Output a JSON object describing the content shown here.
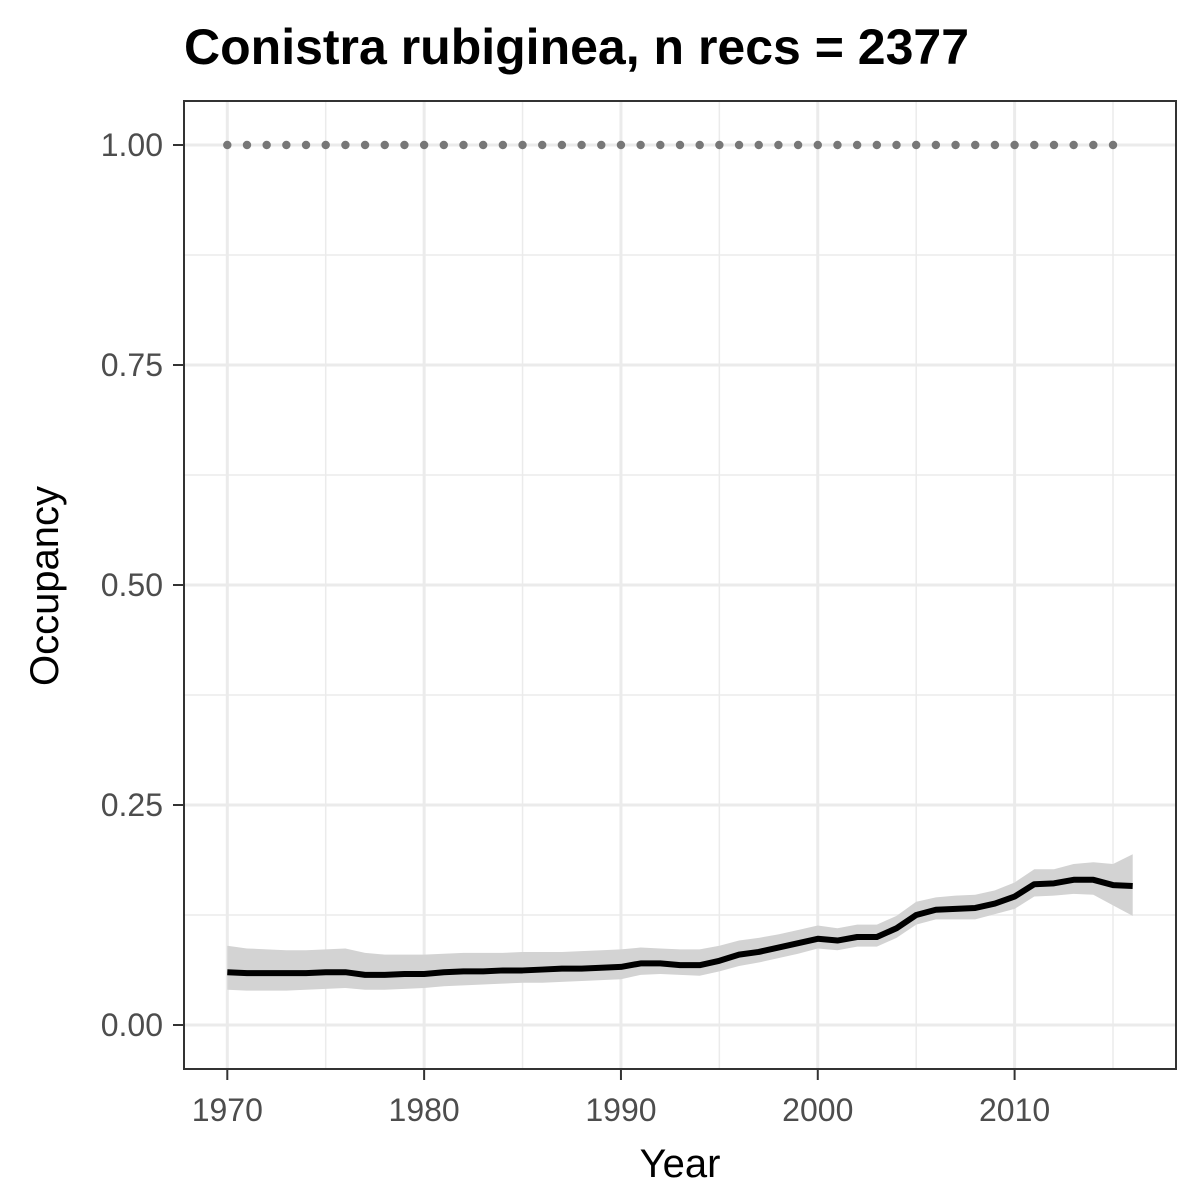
{
  "chart_data": {
    "type": "line",
    "title": "Conistra rubiginea, n recs = 2377",
    "xlabel": "Year",
    "ylabel": "Occupancy",
    "xlim": [
      1967.8,
      2018.2
    ],
    "ylim": [
      -0.05,
      1.05
    ],
    "x_ticks": [
      1970,
      1980,
      1990,
      2000,
      2010
    ],
    "x_tick_labels": [
      "1970",
      "1980",
      "1990",
      "2000",
      "2010"
    ],
    "y_ticks": [
      0,
      0.25,
      0.5,
      0.75,
      1
    ],
    "y_tick_labels": [
      "0.00",
      "0.25",
      "0.50",
      "0.75",
      "1.00"
    ],
    "grid": true,
    "legend": "none",
    "colors": {
      "line": "#000000",
      "ribbon": "#d3d3d3",
      "dots": "#777777",
      "grid": "#ebebeb",
      "panel_border": "#333333"
    },
    "series": [
      {
        "type": "line",
        "x": [
          1970,
          1971,
          1972,
          1973,
          1974,
          1975,
          1976,
          1977,
          1978,
          1979,
          1980,
          1981,
          1982,
          1983,
          1984,
          1985,
          1986,
          1987,
          1988,
          1989,
          1990,
          1991,
          1992,
          1993,
          1994,
          1995,
          1996,
          1997,
          1998,
          1999,
          2000,
          2001,
          2002,
          2003,
          2004,
          2005,
          2006,
          2007,
          2008,
          2009,
          2010,
          2011,
          2012,
          2013,
          2014,
          2015,
          2016
        ],
        "y": [
          0.06,
          0.059,
          0.059,
          0.059,
          0.059,
          0.06,
          0.06,
          0.057,
          0.057,
          0.058,
          0.058,
          0.06,
          0.061,
          0.061,
          0.062,
          0.062,
          0.063,
          0.064,
          0.064,
          0.065,
          0.066,
          0.07,
          0.07,
          0.068,
          0.068,
          0.073,
          0.08,
          0.083,
          0.088,
          0.093,
          0.098,
          0.096,
          0.1,
          0.1,
          0.11,
          0.125,
          0.131,
          0.132,
          0.133,
          0.138,
          0.146,
          0.16,
          0.161,
          0.165,
          0.165,
          0.159,
          0.158
        ],
        "lower": [
          0.04,
          0.039,
          0.039,
          0.039,
          0.04,
          0.041,
          0.042,
          0.04,
          0.04,
          0.041,
          0.042,
          0.044,
          0.045,
          0.046,
          0.047,
          0.048,
          0.048,
          0.049,
          0.05,
          0.051,
          0.052,
          0.057,
          0.058,
          0.057,
          0.056,
          0.061,
          0.067,
          0.071,
          0.076,
          0.081,
          0.087,
          0.085,
          0.089,
          0.089,
          0.099,
          0.114,
          0.12,
          0.12,
          0.12,
          0.126,
          0.132,
          0.146,
          0.147,
          0.149,
          0.148,
          0.136,
          0.124
        ],
        "upper": [
          0.09,
          0.087,
          0.086,
          0.085,
          0.085,
          0.086,
          0.087,
          0.082,
          0.08,
          0.08,
          0.08,
          0.081,
          0.082,
          0.082,
          0.082,
          0.083,
          0.083,
          0.083,
          0.084,
          0.085,
          0.086,
          0.088,
          0.087,
          0.086,
          0.086,
          0.09,
          0.096,
          0.099,
          0.103,
          0.108,
          0.113,
          0.11,
          0.114,
          0.114,
          0.124,
          0.14,
          0.145,
          0.147,
          0.148,
          0.153,
          0.162,
          0.177,
          0.177,
          0.183,
          0.185,
          0.183,
          0.194
        ]
      },
      {
        "type": "dotted",
        "x_start": 1970,
        "x_end": 2015,
        "y": 1.0
      }
    ]
  }
}
